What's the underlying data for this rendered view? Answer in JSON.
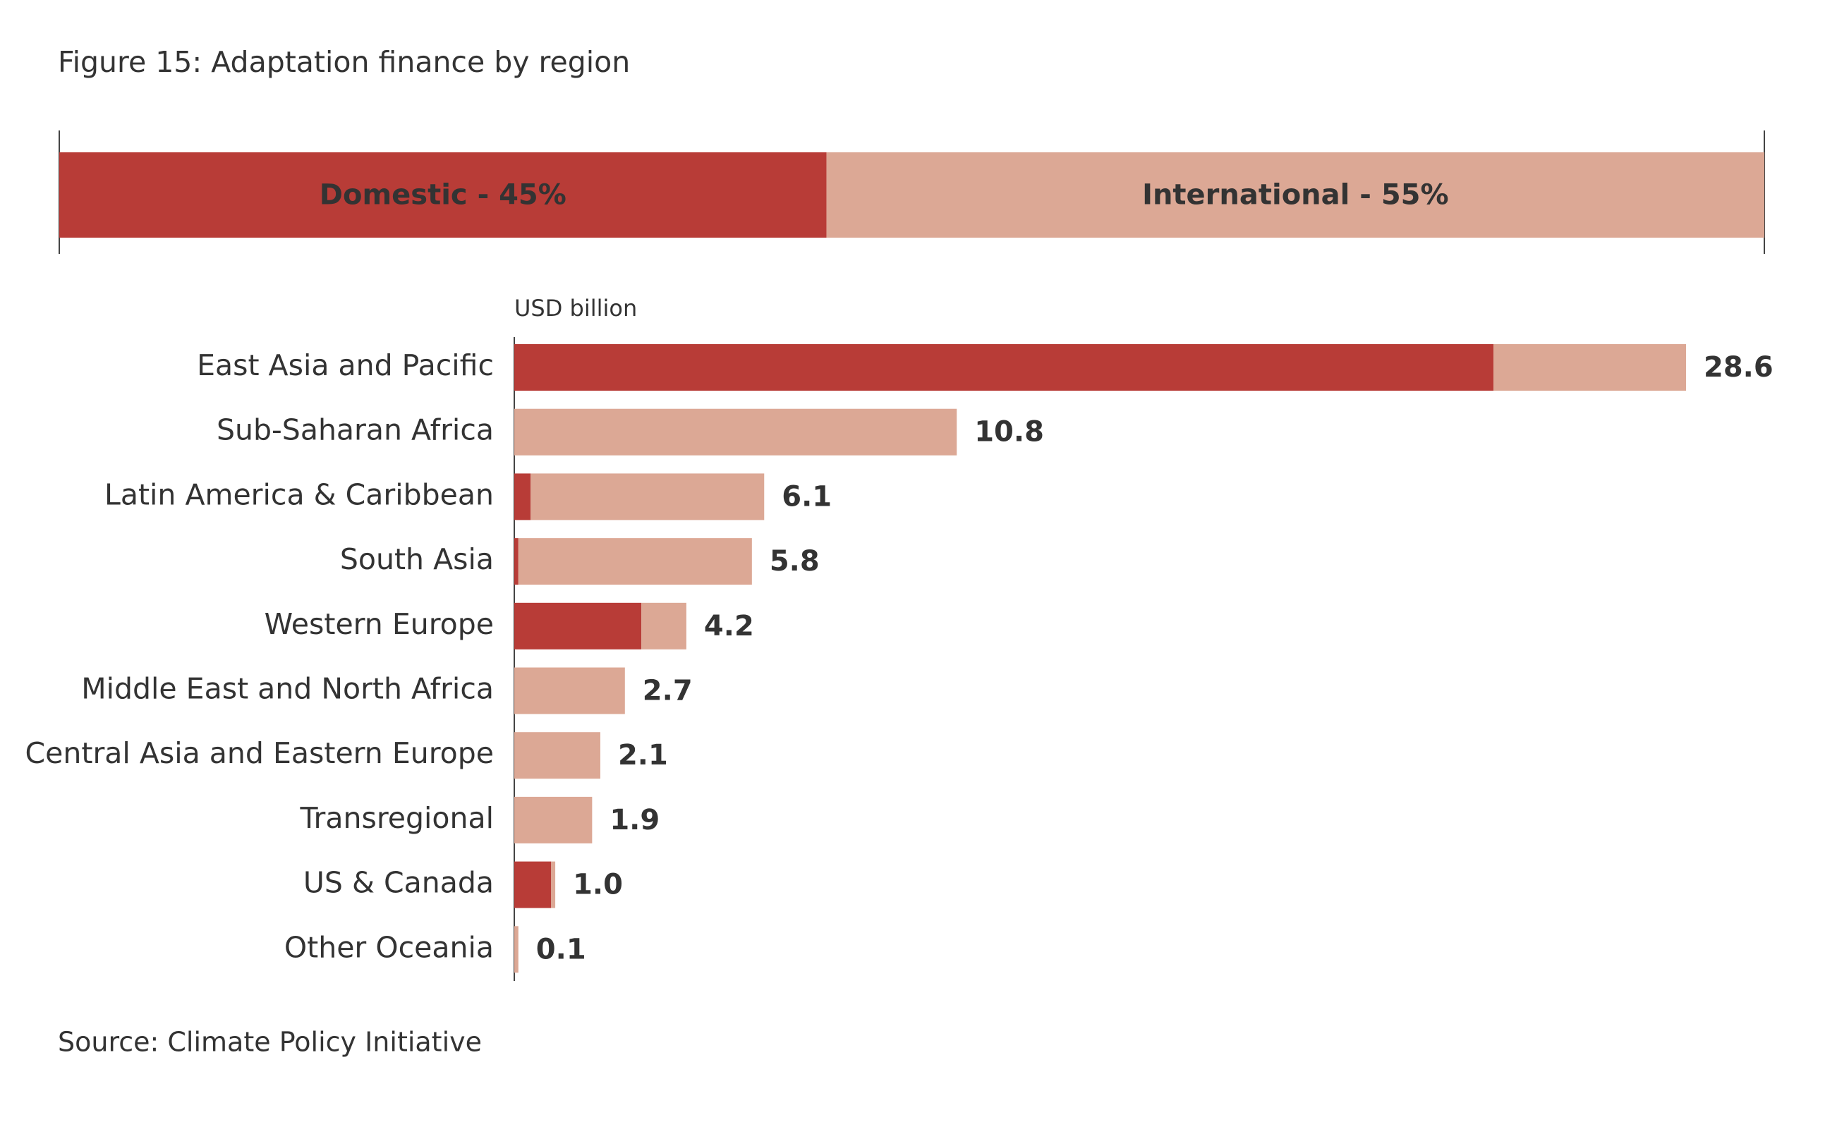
{
  "chart_data": [
    {
      "type": "share-bar",
      "title": "Figure 15: Adaptation finance by region",
      "categories": [
        "Domestic",
        "International"
      ],
      "values": [
        45,
        55
      ],
      "value_labels": [
        "Domestic - 45%",
        "International - 55%"
      ],
      "colors": [
        "#b83c37",
        "#dca895"
      ]
    },
    {
      "type": "stacked-hbar",
      "axis_label": "USD billion",
      "source": "Source: Climate Policy Initiative",
      "categories": [
        "East Asia and Pacific",
        "Sub-Saharan Africa",
        "Latin America & Caribbean",
        "South Asia",
        "Western Europe",
        "Middle East and North Africa",
        "Central Asia and Eastern Europe",
        "Transregional",
        "US & Canada",
        "Other Oceania"
      ],
      "series": [
        {
          "color": "#b83c37",
          "values": [
            23.9,
            0,
            0.4,
            0.1,
            3.1,
            0,
            0,
            0,
            0.9,
            0
          ]
        },
        {
          "color": "#dca895",
          "values": [
            4.7,
            10.8,
            5.7,
            5.7,
            1.1,
            2.7,
            2.1,
            1.9,
            0.1,
            0.1
          ]
        }
      ],
      "totals": [
        28.6,
        10.8,
        6.1,
        5.8,
        4.2,
        2.7,
        2.1,
        1.9,
        1.0,
        0.1
      ],
      "total_labels": [
        "28.6",
        "10.8",
        "6.1",
        "5.8",
        "4.2",
        "2.7",
        "2.1",
        "1.9",
        "1.0",
        "0.1"
      ]
    }
  ]
}
